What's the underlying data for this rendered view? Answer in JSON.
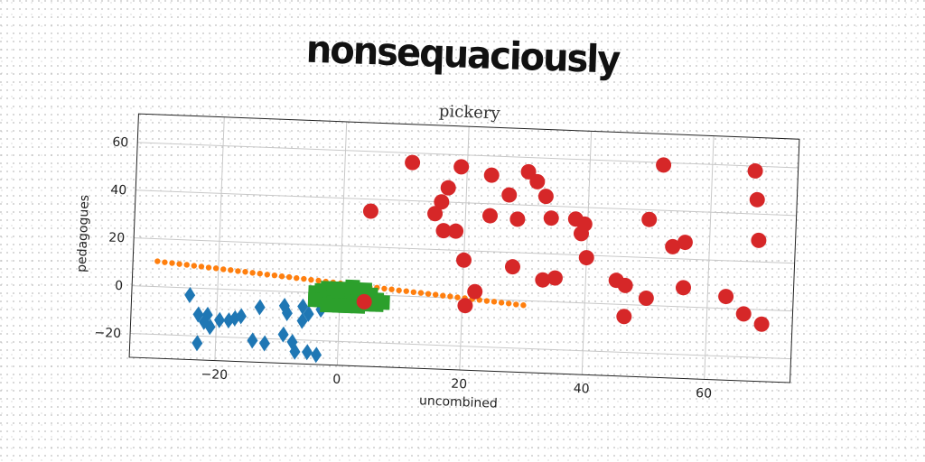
{
  "header": {
    "banner": "nonsequaciously"
  },
  "chart_data": {
    "type": "scatter",
    "title": "pickery",
    "xlabel": "uncombined",
    "ylabel": "pedagogues",
    "xlim": [
      -34,
      74
    ],
    "ylim": [
      -30,
      72
    ],
    "xticks": [
      -20,
      0,
      20,
      40,
      60
    ],
    "yticks": [
      -20,
      0,
      20,
      40,
      60
    ],
    "grid": true,
    "colors": [
      "#1f77b4",
      "#ff7f0e",
      "#2ca02c",
      "#d62728"
    ],
    "series": [
      {
        "marker": "diamond",
        "color": "#1f77b4",
        "points": [
          [
            -24.5,
            -3
          ],
          [
            -23,
            -11
          ],
          [
            -22,
            -14
          ],
          [
            -21.5,
            -11
          ],
          [
            -21,
            -16
          ],
          [
            -23,
            -23
          ],
          [
            -19.5,
            -13
          ],
          [
            -18,
            -13
          ],
          [
            -17,
            -12
          ],
          [
            -16,
            -11
          ],
          [
            -13,
            -7
          ],
          [
            -14,
            -21
          ],
          [
            -12,
            -22
          ],
          [
            -9,
            -6
          ],
          [
            -8.5,
            -9
          ],
          [
            -9,
            -18
          ],
          [
            -7.5,
            -21
          ],
          [
            -7,
            -25
          ],
          [
            -6,
            -6
          ],
          [
            -6,
            -12
          ],
          [
            -5,
            -9
          ],
          [
            -5,
            -25
          ],
          [
            -3.5,
            -26
          ],
          [
            -3,
            -7
          ]
        ]
      },
      {
        "marker": "small-circle",
        "color": "#ff7f0e",
        "points": [
          [
            -30,
            10.6
          ],
          [
            -28.8,
            10.3
          ],
          [
            -27.6,
            10.1
          ],
          [
            -26.4,
            9.8
          ],
          [
            -25.2,
            9.6
          ],
          [
            -24,
            9.3
          ],
          [
            -22.8,
            9.1
          ],
          [
            -21.6,
            8.8
          ],
          [
            -20.4,
            8.6
          ],
          [
            -19.2,
            8.3
          ],
          [
            -18,
            8.1
          ],
          [
            -16.8,
            7.8
          ],
          [
            -15.6,
            7.6
          ],
          [
            -14.4,
            7.3
          ],
          [
            -13.2,
            7.1
          ],
          [
            -12,
            6.8
          ],
          [
            -10.8,
            6.6
          ],
          [
            -9.6,
            6.3
          ],
          [
            -8.4,
            6.1
          ],
          [
            -7.2,
            5.8
          ],
          [
            -6,
            5.6
          ],
          [
            -4.8,
            5.3
          ],
          [
            -3.6,
            5.1
          ],
          [
            -2.4,
            4.8
          ],
          [
            -1.2,
            4.6
          ],
          [
            0,
            4.3
          ],
          [
            1.2,
            4.1
          ],
          [
            2.4,
            3.8
          ],
          [
            3.6,
            3.6
          ],
          [
            4.8,
            3.3
          ],
          [
            6,
            3.1
          ],
          [
            7.2,
            2.8
          ],
          [
            8.4,
            2.6
          ],
          [
            9.6,
            2.3
          ],
          [
            10.8,
            2.1
          ],
          [
            12,
            1.8
          ],
          [
            13.2,
            1.6
          ],
          [
            14.4,
            1.3
          ],
          [
            15.6,
            1.1
          ],
          [
            16.8,
            0.8
          ],
          [
            18,
            0.6
          ],
          [
            19.2,
            0.3
          ],
          [
            20.4,
            0.1
          ],
          [
            21.6,
            -0.2
          ],
          [
            22.8,
            -0.4
          ],
          [
            24,
            -0.7
          ],
          [
            25.2,
            -0.9
          ],
          [
            26.4,
            -1.2
          ],
          [
            27.6,
            -1.4
          ],
          [
            28.8,
            -1.7
          ],
          [
            30,
            -1.9
          ]
        ]
      },
      {
        "marker": "square",
        "color": "#2ca02c",
        "points": [
          [
            -4,
            0
          ],
          [
            -3,
            1
          ],
          [
            -3,
            -3
          ],
          [
            -2,
            2
          ],
          [
            -2,
            -2
          ],
          [
            -1,
            0
          ],
          [
            -1,
            -4
          ],
          [
            0,
            1
          ],
          [
            0,
            -3
          ],
          [
            1,
            2
          ],
          [
            1,
            -1
          ],
          [
            2,
            0
          ],
          [
            2,
            -4
          ],
          [
            3,
            1
          ],
          [
            3,
            -2
          ],
          [
            4,
            -1
          ],
          [
            4,
            -3
          ],
          [
            5,
            0
          ],
          [
            6,
            -2
          ],
          [
            6,
            -4
          ],
          [
            7,
            -3
          ],
          [
            -4,
            -3
          ],
          [
            0,
            -5
          ],
          [
            2,
            3
          ],
          [
            -2,
            -5
          ],
          [
            4,
            2
          ],
          [
            5,
            -4
          ],
          [
            -1,
            2
          ],
          [
            3,
            -5
          ],
          [
            1,
            -5
          ]
        ]
      },
      {
        "marker": "circle",
        "color": "#d62728",
        "points": [
          [
            4.5,
            35
          ],
          [
            4,
            -3
          ],
          [
            11,
            56
          ],
          [
            15,
            35
          ],
          [
            16,
            40
          ],
          [
            16.5,
            28
          ],
          [
            17,
            46
          ],
          [
            18.5,
            28
          ],
          [
            19,
            55
          ],
          [
            20,
            16
          ],
          [
            20.5,
            -3
          ],
          [
            22,
            3
          ],
          [
            24,
            52
          ],
          [
            24,
            35
          ],
          [
            27,
            44
          ],
          [
            28,
            14
          ],
          [
            28.5,
            34
          ],
          [
            30,
            54
          ],
          [
            31.5,
            50
          ],
          [
            33,
            44
          ],
          [
            34,
            35
          ],
          [
            33,
            9
          ],
          [
            35,
            10
          ],
          [
            38,
            35
          ],
          [
            39,
            29
          ],
          [
            39.5,
            33
          ],
          [
            40,
            19
          ],
          [
            45,
            10
          ],
          [
            46.5,
            -5
          ],
          [
            46.5,
            8
          ],
          [
            50,
            3
          ],
          [
            50,
            36
          ],
          [
            52,
            59
          ],
          [
            54,
            25
          ],
          [
            56,
            27
          ],
          [
            56,
            8
          ],
          [
            63,
            5
          ],
          [
            66,
            -2
          ],
          [
            67,
            58
          ],
          [
            67.5,
            46
          ],
          [
            68,
            29
          ],
          [
            69,
            -6
          ]
        ]
      }
    ]
  }
}
